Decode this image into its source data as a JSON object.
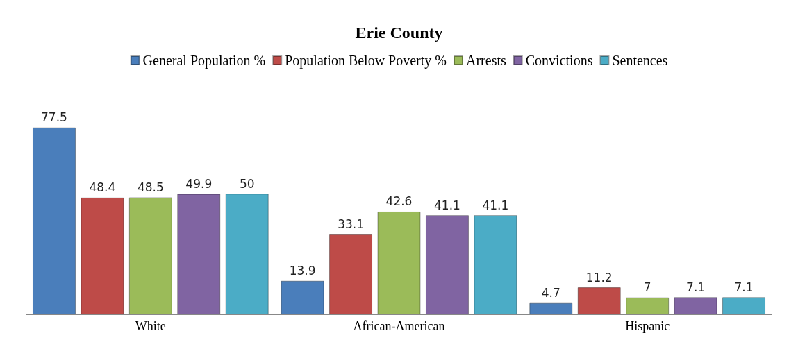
{
  "chart_data": {
    "type": "bar",
    "title": "Erie County",
    "categories": [
      "White",
      "African-American",
      "Hispanic"
    ],
    "series": [
      {
        "name": "General Population %",
        "color": "#4a7ebb",
        "values": [
          77.5,
          13.9,
          4.7
        ]
      },
      {
        "name": "Population Below Poverty %",
        "color": "#be4b48",
        "values": [
          48.4,
          33.1,
          11.2
        ]
      },
      {
        "name": "Arrests",
        "color": "#9bbb59",
        "values": [
          48.5,
          42.6,
          7
        ]
      },
      {
        "name": "Convictions",
        "color": "#8064a2",
        "values": [
          49.9,
          41.1,
          7.1
        ]
      },
      {
        "name": "Sentences",
        "color": "#4bacc6",
        "values": [
          50,
          41.1,
          7.1
        ]
      }
    ],
    "data_labels": true,
    "legend": "top"
  }
}
